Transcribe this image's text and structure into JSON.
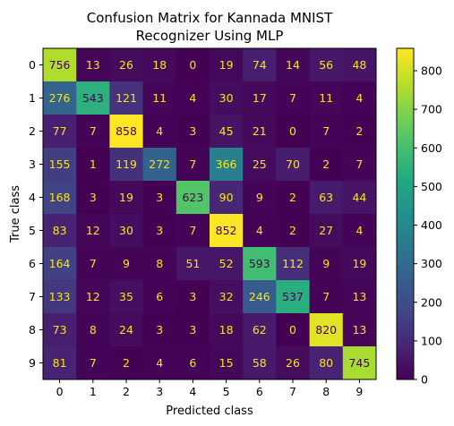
{
  "chart_data": {
    "type": "heatmap",
    "title": "Confusion Matrix for Kannada MNIST",
    "subtitle": "Recognizer Using MLP",
    "xlabel": "Predicted class",
    "ylabel": "True class",
    "x_categories": [
      "0",
      "1",
      "2",
      "3",
      "4",
      "5",
      "6",
      "7",
      "8",
      "9"
    ],
    "y_categories": [
      "0",
      "1",
      "2",
      "3",
      "4",
      "5",
      "6",
      "7",
      "8",
      "9"
    ],
    "values": [
      [
        756,
        13,
        26,
        18,
        0,
        19,
        74,
        14,
        56,
        48
      ],
      [
        276,
        543,
        121,
        11,
        4,
        30,
        17,
        7,
        11,
        4
      ],
      [
        77,
        7,
        858,
        4,
        3,
        45,
        21,
        0,
        7,
        2
      ],
      [
        155,
        1,
        119,
        272,
        7,
        366,
        25,
        70,
        2,
        7
      ],
      [
        168,
        3,
        19,
        3,
        623,
        90,
        9,
        2,
        63,
        44
      ],
      [
        83,
        12,
        30,
        3,
        7,
        852,
        4,
        2,
        27,
        4
      ],
      [
        164,
        7,
        9,
        8,
        51,
        52,
        593,
        112,
        9,
        19
      ],
      [
        133,
        12,
        35,
        6,
        3,
        32,
        246,
        537,
        7,
        13
      ],
      [
        73,
        8,
        24,
        3,
        3,
        18,
        62,
        0,
        820,
        13
      ],
      [
        81,
        7,
        2,
        4,
        6,
        15,
        58,
        26,
        80,
        745
      ]
    ],
    "colorscale": "viridis",
    "value_range": [
      0,
      858
    ],
    "colorbar": {
      "ticks": [
        0,
        100,
        200,
        300,
        400,
        500,
        600,
        700,
        800
      ]
    },
    "text_colors": {
      "on_dark": "#f5e51e",
      "on_light": "#440154"
    }
  }
}
